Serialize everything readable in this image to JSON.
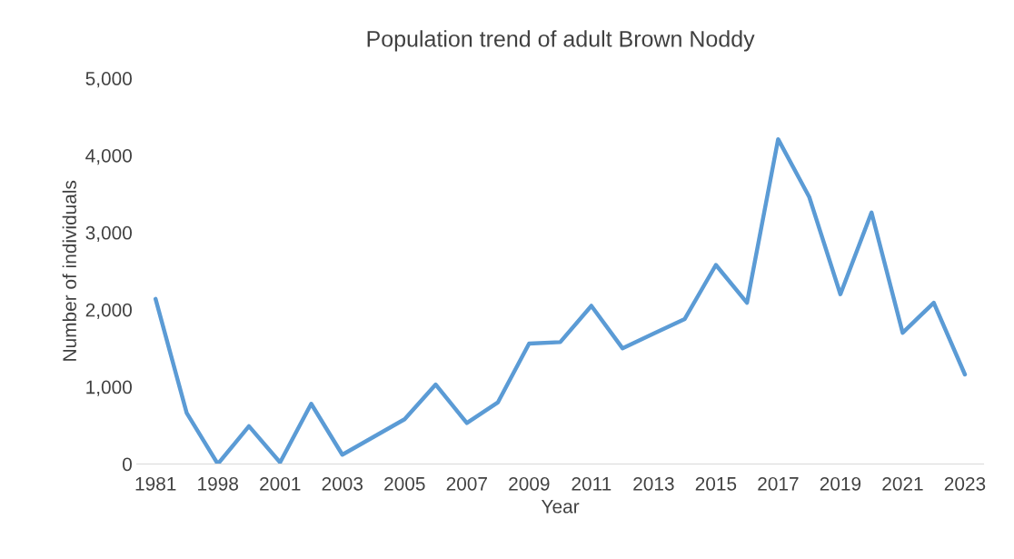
{
  "chart_data": {
    "type": "line",
    "title": "Population trend of adult Brown Noddy",
    "xlabel": "Year",
    "ylabel": "Number of individuals",
    "categories": [
      "1981",
      null,
      "1998",
      null,
      "2001",
      null,
      "2003",
      null,
      "2005",
      null,
      "2007",
      null,
      "2009",
      null,
      "2011",
      null,
      "2013",
      null,
      "2015",
      null,
      "2017",
      null,
      "2019",
      null,
      "2021",
      null,
      "2023"
    ],
    "series": [
      {
        "color": "#5b9bd5",
        "values": [
          2140,
          660,
          0,
          490,
          20,
          780,
          120,
          350,
          580,
          1030,
          530,
          800,
          1560,
          1580,
          2050,
          1500,
          1690,
          1880,
          2580,
          2090,
          4210,
          3460,
          2200,
          3260,
          1700,
          2090,
          1160
        ]
      }
    ],
    "ylim": [
      0,
      5000
    ],
    "yticks": [
      {
        "value": 0,
        "label": "0"
      },
      {
        "value": 1000,
        "label": "1,000"
      },
      {
        "value": 2000,
        "label": "2,000"
      },
      {
        "value": 3000,
        "label": "3,000"
      },
      {
        "value": 4000,
        "label": "4,000"
      },
      {
        "value": 5000,
        "label": "5,000"
      }
    ],
    "grid": false,
    "legend": false,
    "marker": "none",
    "line_style": "solid"
  }
}
